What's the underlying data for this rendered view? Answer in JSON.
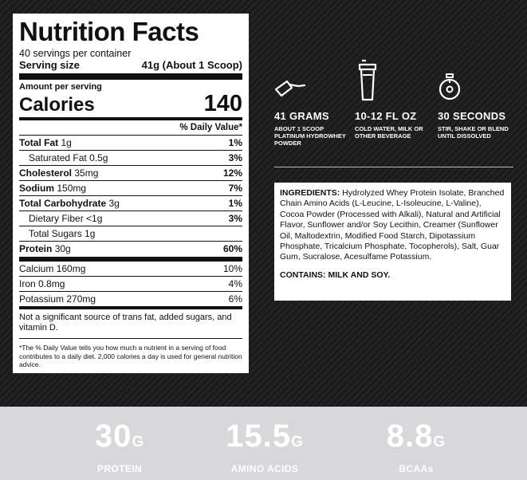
{
  "nutrition": {
    "title": "Nutrition Facts",
    "servings_per_container": "40 servings per container",
    "serving_size_label": "Serving size",
    "serving_size_value": "41g (About 1 Scoop)",
    "amount_per_serving": "Amount per serving",
    "calories_label": "Calories",
    "calories_value": "140",
    "daily_value_header": "% Daily Value*",
    "rows": [
      {
        "name": "Total Fat",
        "amount": "1g",
        "pct": "1%"
      },
      {
        "name": "Saturated Fat",
        "amount": "0.5g",
        "pct": "3%"
      },
      {
        "name": "Cholesterol",
        "amount": "35mg",
        "pct": "12%"
      },
      {
        "name": "Sodium",
        "amount": "150mg",
        "pct": "7%"
      },
      {
        "name": "Total Carbohydrate",
        "amount": "3g",
        "pct": "1%"
      },
      {
        "name": "Dietary Fiber",
        "amount": "<1g",
        "pct": "3%"
      },
      {
        "name": "Total Sugars",
        "amount": "1g",
        "pct": ""
      },
      {
        "name": "Protein",
        "amount": "30g",
        "pct": "60%"
      },
      {
        "name": "Calcium",
        "amount": "160mg",
        "pct": "10%"
      },
      {
        "name": "Iron",
        "amount": "0.8mg",
        "pct": "4%"
      },
      {
        "name": "Potassium",
        "amount": "270mg",
        "pct": "6%"
      }
    ],
    "footnote_trans_fat": "Not a significant source of trans fat, added sugars, and vitamin D.",
    "footnote_daily_value": "*The % Daily Value tells you how much a nutrient in a serving of food contributes to a daily diet. 2,000 calories a day is used for general nutrition advice."
  },
  "directions": [
    {
      "icon": "scoop-icon",
      "title": "41 GRAMS",
      "desc": "ABOUT 1 SCOOP PLATINUM HYDROWHEY POWDER"
    },
    {
      "icon": "shaker-icon",
      "title": "10-12 FL OZ",
      "desc": "COLD WATER, MILK OR OTHER BEVERAGE"
    },
    {
      "icon": "timer-icon",
      "title": "30 SECONDS",
      "desc": "STIR, SHAKE OR BLEND UNTIL DISSOLVED"
    }
  ],
  "ingredients": {
    "label": "INGREDIENTS:",
    "text": " Hydrolyzed Whey Protein Isolate, Branched Chain Amino Acids (L-Leucine, L-Isoleucine, L-Valine), Cocoa Powder (Processed with Alkali), Natural and Artificial Flavor, Sunflower and/or Soy Lecithin, Creamer (Sunflower Oil, Maltodextrin, Modified Food Starch, Dipotassium Phosphate, Tricalcium Phosphate, Tocopherols), Salt, Guar Gum, Sucralose, Acesulfame Potassium.",
    "contains": "CONTAINS: MILK AND SOY."
  },
  "stats": [
    {
      "value": "30",
      "unit": "G",
      "label": "PROTEIN"
    },
    {
      "value": "15.5",
      "unit": "G",
      "label": "AMINO ACIDS"
    },
    {
      "value": "8.8",
      "unit": "G",
      "label": "BCAAs"
    }
  ],
  "colors": {
    "background": "#1c1c1c",
    "panel": "#ffffff",
    "stats_band": "#d8d8da",
    "text_dark": "#111111",
    "text_light": "#ffffff"
  }
}
